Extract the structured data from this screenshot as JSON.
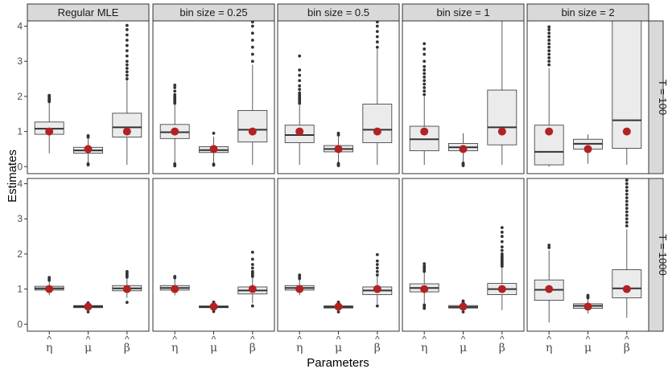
{
  "chart_data": {
    "type": "boxplot",
    "title": "",
    "xlabel": "Parameters",
    "ylabel": "Estimates",
    "ylim": [
      -0.2,
      4.15
    ],
    "yticks": [
      0,
      1,
      2,
      3,
      4
    ],
    "categories": [
      {
        "base": "η",
        "hat": "^"
      },
      {
        "base": "μ",
        "hat": "^"
      },
      {
        "base": "β",
        "hat": "^"
      }
    ],
    "columns": [
      "Regular MLE",
      "bin size = 0.25",
      "bin size = 0.5",
      "bin size = 1",
      "bin size = 2"
    ],
    "rows": [
      "T = 100",
      "T = 1000"
    ],
    "true_values": [
      1,
      0.5,
      1
    ],
    "colors": {
      "box_fill": "#ebebeb",
      "box_stroke": "#333333",
      "true_point": "#b22222",
      "strip_fill": "#d9d9d9",
      "panel_border": "#333333"
    },
    "panels": [
      [
        [
          {
            "whislo": 0.38,
            "q1": 0.92,
            "med": 1.08,
            "q3": 1.27,
            "whishi": 1.82,
            "outliers": [
              1.85,
              1.88,
              1.91,
              1.94,
              1.97,
              2.0,
              2.03
            ]
          },
          {
            "whislo": 0.1,
            "q1": 0.38,
            "med": 0.46,
            "q3": 0.55,
            "whishi": 0.8,
            "outliers": [
              0.05,
              0.08,
              0.84,
              0.88
            ]
          },
          {
            "whislo": 0.05,
            "q1": 0.84,
            "med": 1.12,
            "q3": 1.52,
            "whishi": 2.45,
            "outliers": [
              2.5,
              2.6,
              2.7,
              2.8,
              2.9,
              3.0,
              3.15,
              3.3,
              3.45,
              3.6,
              3.75,
              3.9,
              4.02
            ]
          }
        ],
        [
          {
            "whislo": 0.1,
            "q1": 0.8,
            "med": 0.98,
            "q3": 1.2,
            "whishi": 1.75,
            "outliers": [
              0.02,
              0.05,
              0.08,
              1.8,
              1.85,
              1.9,
              1.95,
              2.0,
              2.05,
              2.15,
              2.25,
              2.32
            ]
          },
          {
            "whislo": 0.1,
            "q1": 0.4,
            "med": 0.47,
            "q3": 0.57,
            "whishi": 0.85,
            "outliers": [
              0.04,
              0.07,
              0.95
            ]
          },
          {
            "whislo": 0.05,
            "q1": 0.7,
            "med": 1.05,
            "q3": 1.6,
            "whishi": 2.9,
            "outliers": [
              3.0,
              3.2,
              3.4,
              3.6,
              3.8,
              4.0,
              4.12
            ]
          }
        ],
        [
          {
            "whislo": 0.05,
            "q1": 0.68,
            "med": 0.9,
            "q3": 1.18,
            "whishi": 1.75,
            "outliers": [
              1.8,
              1.85,
              1.9,
              1.95,
              2.0,
              2.05,
              2.1,
              2.2,
              2.3,
              2.45,
              2.6,
              2.75,
              3.15
            ]
          },
          {
            "whislo": 0.1,
            "q1": 0.42,
            "med": 0.5,
            "q3": 0.6,
            "whishi": 0.85,
            "outliers": [
              0.03,
              0.06,
              0.09,
              0.9,
              0.95
            ]
          },
          {
            "whislo": 0.05,
            "q1": 0.68,
            "med": 1.05,
            "q3": 1.78,
            "whishi": 3.35,
            "outliers": [
              3.4,
              3.55,
              3.7,
              3.85,
              4.0,
              4.12
            ]
          }
        ],
        [
          {
            "whislo": 0.05,
            "q1": 0.45,
            "med": 0.78,
            "q3": 1.15,
            "whishi": 2.0,
            "outliers": [
              2.05,
              2.15,
              2.25,
              2.35,
              2.45,
              2.55,
              2.65,
              2.75,
              2.85,
              3.0,
              3.2,
              3.35,
              3.5
            ]
          },
          {
            "whislo": 0.15,
            "q1": 0.45,
            "med": 0.55,
            "q3": 0.66,
            "whishi": 0.95,
            "outliers": [
              0.03,
              0.06,
              0.1
            ]
          },
          {
            "whislo": 0.05,
            "q1": 0.62,
            "med": 1.12,
            "q3": 2.18,
            "whishi": 4.15,
            "outliers": []
          }
        ],
        [
          {
            "whislo": 0.0,
            "q1": 0.05,
            "med": 0.42,
            "q3": 1.18,
            "whishi": 2.8,
            "outliers": [
              2.9,
              3.0,
              3.1,
              3.2,
              3.3,
              3.4,
              3.5,
              3.6,
              3.7,
              3.8,
              3.9,
              3.98
            ]
          },
          {
            "whislo": 0.08,
            "q1": 0.5,
            "med": 0.65,
            "q3": 0.78,
            "whishi": 0.92,
            "outliers": []
          },
          {
            "whislo": 0.05,
            "q1": 0.52,
            "med": 1.32,
            "q3": 4.15,
            "whishi": 4.15,
            "outliers": []
          }
        ]
      ],
      [
        [
          {
            "whislo": 0.82,
            "q1": 0.97,
            "med": 1.02,
            "q3": 1.08,
            "whishi": 1.22,
            "outliers": [
              1.25,
              1.29,
              1.33
            ]
          },
          {
            "whislo": 0.38,
            "q1": 0.47,
            "med": 0.5,
            "q3": 0.53,
            "whishi": 0.58,
            "outliers": [
              0.35,
              0.61
            ]
          },
          {
            "whislo": 0.75,
            "q1": 0.95,
            "med": 1.02,
            "q3": 1.1,
            "whishi": 1.3,
            "outliers": [
              0.62,
              1.34,
              1.38,
              1.42,
              1.46,
              1.5
            ]
          }
        ],
        [
          {
            "whislo": 0.82,
            "q1": 0.97,
            "med": 1.03,
            "q3": 1.1,
            "whishi": 1.28,
            "outliers": [
              1.32,
              1.36
            ]
          },
          {
            "whislo": 0.4,
            "q1": 0.47,
            "med": 0.49,
            "q3": 0.52,
            "whishi": 0.58,
            "outliers": [
              0.36,
              0.6,
              0.63
            ]
          },
          {
            "whislo": 0.6,
            "q1": 0.86,
            "med": 0.96,
            "q3": 1.06,
            "whishi": 1.32,
            "outliers": [
              0.52,
              1.36,
              1.4,
              1.45,
              1.5,
              1.6,
              1.7,
              1.85,
              2.05
            ]
          }
        ],
        [
          {
            "whislo": 0.82,
            "q1": 0.97,
            "med": 1.03,
            "q3": 1.1,
            "whishi": 1.28,
            "outliers": [
              1.3,
              1.35,
              1.4
            ]
          },
          {
            "whislo": 0.38,
            "q1": 0.46,
            "med": 0.49,
            "q3": 0.52,
            "whishi": 0.58,
            "outliers": [
              0.35,
              0.6,
              0.63
            ]
          },
          {
            "whislo": 0.58,
            "q1": 0.84,
            "med": 0.96,
            "q3": 1.06,
            "whishi": 1.35,
            "outliers": [
              0.52,
              1.4,
              1.5,
              1.6,
              1.7,
              1.8,
              1.98
            ]
          }
        ],
        [
          {
            "whislo": 0.6,
            "q1": 0.92,
            "med": 1.03,
            "q3": 1.15,
            "whishi": 1.45,
            "outliers": [
              0.45,
              0.5,
              0.55,
              1.5,
              1.55,
              1.6,
              1.65,
              1.72
            ]
          },
          {
            "whislo": 0.38,
            "q1": 0.46,
            "med": 0.49,
            "q3": 0.53,
            "whishi": 0.6,
            "outliers": [
              0.35,
              0.63,
              0.66
            ]
          },
          {
            "whislo": 0.4,
            "q1": 0.84,
            "med": 1.0,
            "q3": 1.16,
            "whishi": 1.6,
            "outliers": [
              1.65,
              1.7,
              1.75,
              1.8,
              1.85,
              1.9,
              1.95,
              2.0,
              2.1,
              2.2,
              2.35,
              2.5,
              2.62,
              2.75
            ]
          }
        ],
        [
          {
            "whislo": 0.05,
            "q1": 0.68,
            "med": 0.98,
            "q3": 1.26,
            "whishi": 2.1,
            "outliers": [
              2.18,
              2.25
            ]
          },
          {
            "whislo": 0.3,
            "q1": 0.45,
            "med": 0.52,
            "q3": 0.58,
            "whishi": 0.72,
            "outliers": [
              0.75,
              0.78,
              0.82
            ]
          },
          {
            "whislo": 0.18,
            "q1": 0.75,
            "med": 1.02,
            "q3": 1.55,
            "whishi": 2.7,
            "outliers": [
              2.8,
              2.9,
              3.0,
              3.1,
              3.2,
              3.3,
              3.4,
              3.5,
              3.6,
              3.7,
              3.8,
              3.9,
              4.0,
              4.1
            ]
          }
        ]
      ]
    ]
  }
}
